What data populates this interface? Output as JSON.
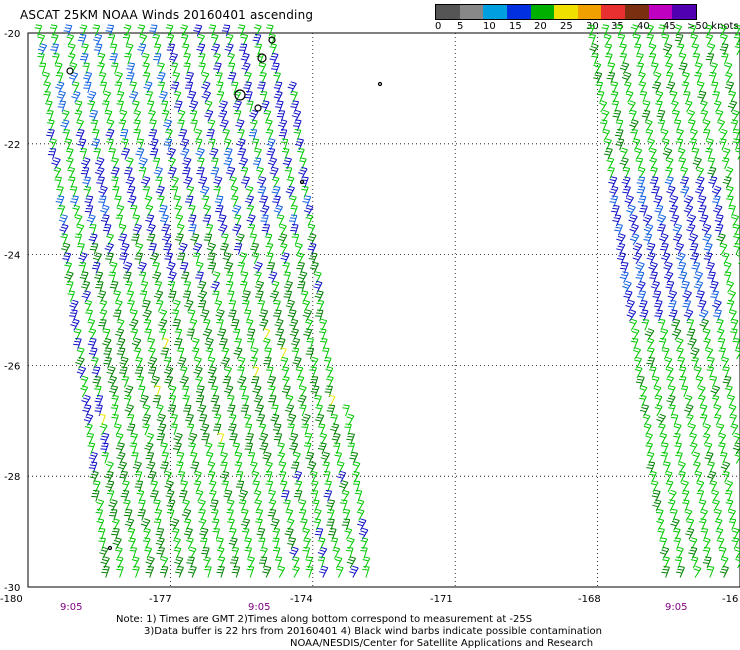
{
  "title": "ASCAT 25KM NOAA Winds 20160401 ascending",
  "colorbar": {
    "colors": [
      "#555555",
      "#888888",
      "#00a0e0",
      "#0030e0",
      "#00b000",
      "#f0e000",
      "#f0a000",
      "#e83030",
      "#7a3010",
      "#c000c0",
      "#5000b0"
    ],
    "labels": [
      "0",
      "5",
      "10",
      "15",
      "20",
      "25",
      "30",
      "35",
      "40",
      "45",
      ">50 knots"
    ]
  },
  "map": {
    "lat_labels": [
      "-20",
      "-22",
      "-24",
      "-26",
      "-28",
      "-30"
    ],
    "lon_labels": [
      "-180",
      "-177",
      "-174",
      "-171",
      "-168",
      "-16"
    ],
    "time_labels": [
      "9:05",
      "9:05",
      "9:05"
    ],
    "lon_range": [
      -180,
      -165
    ],
    "lat_range": [
      -30,
      -20
    ],
    "grid": "dotted",
    "barb_colors": {
      "blue": "#1010c8",
      "light_blue": "#1060e0",
      "green": "#00c800",
      "dark_green": "#008000",
      "yellow": "#e8e800"
    }
  },
  "notes": {
    "line1": "Note: 1) Times are GMT 2)Times along bottom correspond to measurement at -25S",
    "line2": "3)Data buffer is 22 hrs from 20160401 4) Black wind barbs indicate possible contamination",
    "line3": "NOAA/NESDIS/Center for Satellite Applications and Research"
  }
}
